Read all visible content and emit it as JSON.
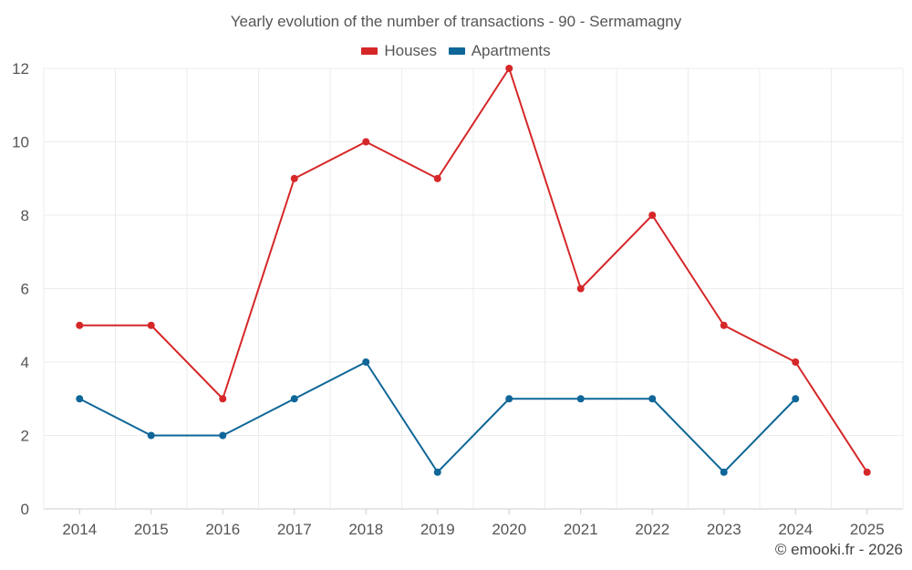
{
  "chart_data": {
    "type": "line",
    "title": "Yearly evolution of the number of transactions - 90 - Sermamagny",
    "x": [
      "2014",
      "2015",
      "2016",
      "2017",
      "2018",
      "2019",
      "2020",
      "2021",
      "2022",
      "2023",
      "2024",
      "2025"
    ],
    "series": [
      {
        "name": "Houses",
        "color": "#d62728",
        "values": [
          5,
          5,
          3,
          9,
          10,
          9,
          12,
          6,
          8,
          5,
          4,
          1
        ]
      },
      {
        "name": "Apartments",
        "color": "#0f6698",
        "values": [
          3,
          2,
          2,
          3,
          4,
          1,
          3,
          3,
          3,
          1,
          3,
          null
        ]
      }
    ],
    "ylim": [
      0,
      12
    ],
    "yticks": [
      0,
      2,
      4,
      6,
      8,
      10,
      12
    ],
    "grid": true,
    "legend_position": "top-center",
    "xlabel": "",
    "ylabel": ""
  },
  "credit": "© emooki.fr - 2026"
}
